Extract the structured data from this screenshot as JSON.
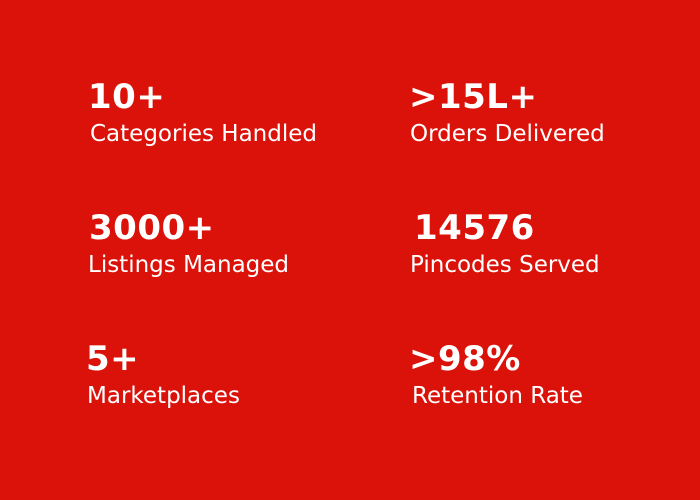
{
  "background_color": "#db1209",
  "text_color": "#ffffff",
  "stats": [
    {
      "value": "10+",
      "label": "Categories Handled"
    },
    {
      "value": ">15L+",
      "label": "Orders Delivered"
    },
    {
      "value": "3000+",
      "label": "Listings Managed"
    },
    {
      "value": "14576",
      "label": "Pincodes Served"
    },
    {
      "value": "5+",
      "label": "Marketplaces"
    },
    {
      "value": ">98%",
      "label": "Retention Rate"
    }
  ]
}
